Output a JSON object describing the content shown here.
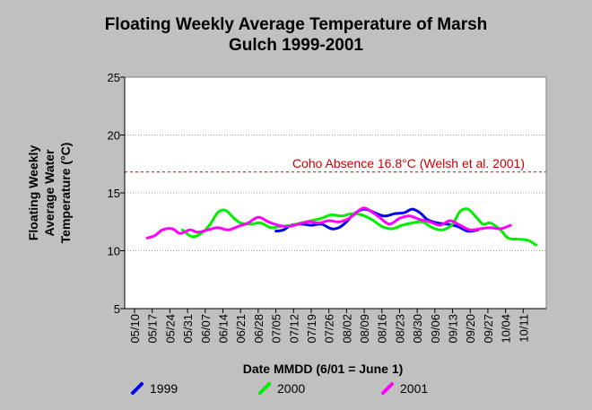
{
  "chart_data": {
    "type": "line",
    "title_line1": "Floating Weekly Average Temperature of Marsh",
    "title_line2": "Gulch 1999-2001",
    "xlabel": "Date MMDD (6/01 = June 1)",
    "ylabel_lines": [
      "Floating Weekly",
      "Average Water",
      "Temperature (°C)"
    ],
    "ylim": [
      5,
      25
    ],
    "yticks": [
      "5",
      "10",
      "15",
      "20",
      "25"
    ],
    "x_start": "05/10",
    "x_end": "10/18",
    "xticks": [
      "05/10",
      "05/17",
      "05/24",
      "05/31",
      "06/07",
      "06/14",
      "06/21",
      "06/28",
      "07/05",
      "07/12",
      "07/19",
      "07/26",
      "08/02",
      "08/09",
      "08/16",
      "08/23",
      "08/30",
      "09/06",
      "09/13",
      "09/20",
      "09/27",
      "10/04",
      "10/11"
    ],
    "grid": true,
    "reference_line": {
      "value": 16.8,
      "label": "Coho Absence 16.8°C (Welsh et al. 2001)",
      "color": "#cc0000"
    },
    "legend_placement": "bottom",
    "series": [
      {
        "name": "1999",
        "color": "#0000ee",
        "x": [
          "07/05",
          "07/08",
          "07/11",
          "07/15",
          "07/19",
          "07/23",
          "07/27",
          "07/30",
          "08/02",
          "08/05",
          "08/09",
          "08/13",
          "08/17",
          "08/21",
          "08/25",
          "08/28",
          "08/31",
          "09/03",
          "09/07",
          "09/11",
          "09/15",
          "09/19",
          "09/23"
        ],
        "y": [
          11.7,
          11.8,
          12.2,
          12.3,
          12.2,
          12.3,
          11.9,
          12.0,
          12.5,
          13.2,
          13.6,
          13.3,
          13.0,
          13.2,
          13.3,
          13.6,
          13.3,
          12.7,
          12.4,
          12.3,
          12.1,
          11.7,
          11.8
        ]
      },
      {
        "name": "2000",
        "color": "#00ee00",
        "x": [
          "05/29",
          "06/02",
          "06/06",
          "06/09",
          "06/12",
          "06/15",
          "06/18",
          "06/21",
          "06/25",
          "06/29",
          "07/03",
          "07/07",
          "07/11",
          "07/15",
          "07/19",
          "07/23",
          "07/27",
          "07/31",
          "08/04",
          "08/08",
          "08/12",
          "08/16",
          "08/20",
          "08/24",
          "08/28",
          "09/01",
          "09/05",
          "09/09",
          "09/13",
          "09/16",
          "09/19",
          "09/22",
          "09/25",
          "09/28",
          "10/02",
          "10/05",
          "10/09",
          "10/13",
          "10/16"
        ],
        "y": [
          11.8,
          11.2,
          11.6,
          12.3,
          13.3,
          13.5,
          12.9,
          12.4,
          12.3,
          12.4,
          12.0,
          12.1,
          12.2,
          12.4,
          12.6,
          12.8,
          13.1,
          13.0,
          13.2,
          13.1,
          12.7,
          12.1,
          11.9,
          12.2,
          12.4,
          12.5,
          12.0,
          11.8,
          12.3,
          13.4,
          13.6,
          13.0,
          12.3,
          12.4,
          11.8,
          11.1,
          11.0,
          10.9,
          10.5
        ]
      },
      {
        "name": "2001",
        "color": "#ff00ff",
        "x": [
          "05/15",
          "05/18",
          "05/21",
          "05/25",
          "05/28",
          "06/01",
          "06/04",
          "06/08",
          "06/12",
          "06/16",
          "06/20",
          "06/24",
          "06/28",
          "07/02",
          "07/06",
          "07/10",
          "07/14",
          "07/18",
          "07/22",
          "07/26",
          "07/30",
          "08/03",
          "08/07",
          "08/09",
          "08/11",
          "08/15",
          "08/19",
          "08/23",
          "08/27",
          "08/31",
          "09/04",
          "09/08",
          "09/12",
          "09/16",
          "09/20",
          "09/24",
          "09/28",
          "10/02",
          "10/06"
        ],
        "y": [
          11.1,
          11.3,
          11.8,
          11.9,
          11.5,
          11.8,
          11.6,
          11.8,
          12.0,
          11.8,
          12.1,
          12.4,
          12.9,
          12.5,
          12.2,
          12.1,
          12.3,
          12.5,
          12.4,
          12.6,
          12.5,
          12.8,
          13.5,
          13.7,
          13.5,
          12.9,
          12.3,
          12.8,
          13.0,
          12.7,
          12.5,
          12.2,
          12.6,
          12.2,
          11.8,
          11.9,
          12.0,
          11.9,
          12.2
        ]
      }
    ]
  }
}
